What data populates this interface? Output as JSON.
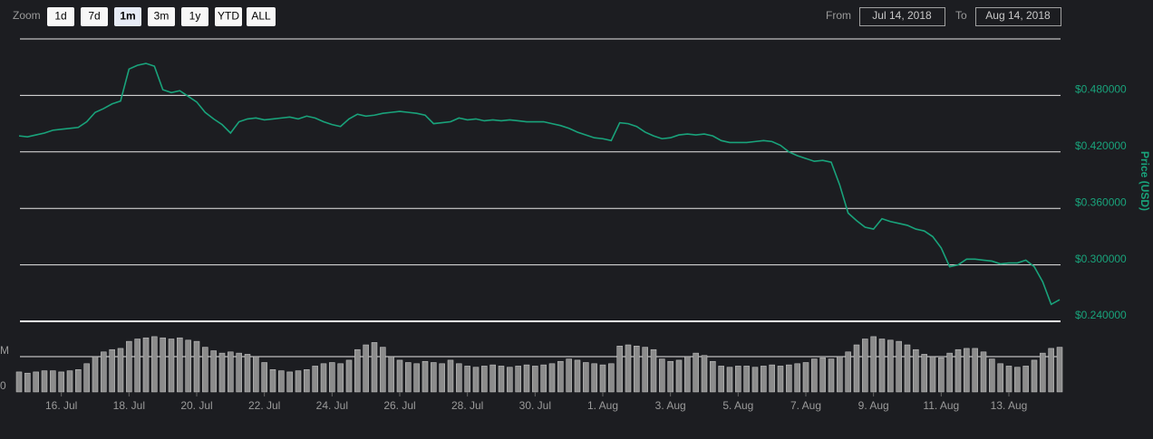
{
  "zoom_label": "Zoom",
  "zoom_buttons": [
    "1d",
    "7d",
    "1m",
    "3m",
    "1y",
    "YTD",
    "ALL"
  ],
  "from_label": "From",
  "from_value": "Jul 14, 2018",
  "to_label": "To",
  "to_value": "Aug 14, 2018",
  "chart_data": [
    {
      "type": "line",
      "color": "#19a37b",
      "y_label": "Price (USD)",
      "grid": true,
      "xlim": [
        "2018-07-14T18:00",
        "2018-08-14T12:00"
      ],
      "ylim": [
        0.24,
        0.54
      ],
      "yticks": [
        {
          "value": 0.24,
          "label": "$0.240000"
        },
        {
          "value": 0.3,
          "label": "$0.300000"
        },
        {
          "value": 0.36,
          "label": "$0.360000"
        },
        {
          "value": 0.42,
          "label": "$0.420000"
        },
        {
          "value": 0.48,
          "label": "$0.480000"
        }
      ],
      "x": [
        "2018-07-14T18:00",
        "2018-07-15T00:00",
        "2018-07-15T06:00",
        "2018-07-15T12:00",
        "2018-07-15T18:00",
        "2018-07-16T00:00",
        "2018-07-16T06:00",
        "2018-07-16T12:00",
        "2018-07-16T18:00",
        "2018-07-17T00:00",
        "2018-07-17T06:00",
        "2018-07-17T12:00",
        "2018-07-17T18:00",
        "2018-07-18T00:00",
        "2018-07-18T06:00",
        "2018-07-18T12:00",
        "2018-07-18T18:00",
        "2018-07-19T00:00",
        "2018-07-19T06:00",
        "2018-07-19T12:00",
        "2018-07-19T18:00",
        "2018-07-20T00:00",
        "2018-07-20T06:00",
        "2018-07-20T12:00",
        "2018-07-20T18:00",
        "2018-07-21T00:00",
        "2018-07-21T06:00",
        "2018-07-21T12:00",
        "2018-07-21T18:00",
        "2018-07-22T00:00",
        "2018-07-22T06:00",
        "2018-07-22T12:00",
        "2018-07-22T18:00",
        "2018-07-23T00:00",
        "2018-07-23T06:00",
        "2018-07-23T12:00",
        "2018-07-23T18:00",
        "2018-07-24T00:00",
        "2018-07-24T06:00",
        "2018-07-24T12:00",
        "2018-07-24T18:00",
        "2018-07-25T00:00",
        "2018-07-25T06:00",
        "2018-07-25T12:00",
        "2018-07-25T18:00",
        "2018-07-26T00:00",
        "2018-07-26T06:00",
        "2018-07-26T12:00",
        "2018-07-26T18:00",
        "2018-07-27T00:00",
        "2018-07-27T06:00",
        "2018-07-27T12:00",
        "2018-07-27T18:00",
        "2018-07-28T00:00",
        "2018-07-28T06:00",
        "2018-07-28T12:00",
        "2018-07-28T18:00",
        "2018-07-29T00:00",
        "2018-07-29T06:00",
        "2018-07-29T12:00",
        "2018-07-29T18:00",
        "2018-07-30T00:00",
        "2018-07-30T06:00",
        "2018-07-30T12:00",
        "2018-07-30T18:00",
        "2018-07-31T00:00",
        "2018-07-31T06:00",
        "2018-07-31T12:00",
        "2018-07-31T18:00",
        "2018-08-01T00:00",
        "2018-08-01T06:00",
        "2018-08-01T12:00",
        "2018-08-01T18:00",
        "2018-08-02T00:00",
        "2018-08-02T06:00",
        "2018-08-02T12:00",
        "2018-08-02T18:00",
        "2018-08-03T00:00",
        "2018-08-03T06:00",
        "2018-08-03T12:00",
        "2018-08-03T18:00",
        "2018-08-04T00:00",
        "2018-08-04T06:00",
        "2018-08-04T12:00",
        "2018-08-04T18:00",
        "2018-08-05T00:00",
        "2018-08-05T06:00",
        "2018-08-05T12:00",
        "2018-08-05T18:00",
        "2018-08-06T00:00",
        "2018-08-06T06:00",
        "2018-08-06T12:00",
        "2018-08-06T18:00",
        "2018-08-07T00:00",
        "2018-08-07T06:00",
        "2018-08-07T12:00",
        "2018-08-07T18:00",
        "2018-08-08T00:00",
        "2018-08-08T06:00",
        "2018-08-08T12:00",
        "2018-08-08T18:00",
        "2018-08-09T00:00",
        "2018-08-09T06:00",
        "2018-08-09T12:00",
        "2018-08-09T18:00",
        "2018-08-10T00:00",
        "2018-08-10T06:00",
        "2018-08-10T12:00",
        "2018-08-10T18:00",
        "2018-08-11T00:00",
        "2018-08-11T06:00",
        "2018-08-11T12:00",
        "2018-08-11T18:00",
        "2018-08-12T00:00",
        "2018-08-12T06:00",
        "2018-08-12T12:00",
        "2018-08-12T18:00",
        "2018-08-13T00:00",
        "2018-08-13T06:00",
        "2018-08-13T12:00",
        "2018-08-13T18:00",
        "2018-08-14T00:00",
        "2018-08-14T06:00",
        "2018-08-14T12:00"
      ],
      "values": [
        0.437,
        0.436,
        0.438,
        0.44,
        0.443,
        0.444,
        0.445,
        0.446,
        0.452,
        0.462,
        0.466,
        0.471,
        0.474,
        0.508,
        0.512,
        0.514,
        0.511,
        0.486,
        0.483,
        0.485,
        0.479,
        0.473,
        0.462,
        0.455,
        0.449,
        0.44,
        0.452,
        0.455,
        0.456,
        0.454,
        0.455,
        0.456,
        0.457,
        0.455,
        0.458,
        0.456,
        0.452,
        0.449,
        0.447,
        0.455,
        0.46,
        0.458,
        0.459,
        0.461,
        0.462,
        0.463,
        0.462,
        0.461,
        0.459,
        0.45,
        0.451,
        0.452,
        0.456,
        0.454,
        0.455,
        0.453,
        0.454,
        0.453,
        0.454,
        0.453,
        0.452,
        0.452,
        0.452,
        0.45,
        0.448,
        0.445,
        0.441,
        0.438,
        0.435,
        0.434,
        0.432,
        0.451,
        0.45,
        0.447,
        0.441,
        0.437,
        0.434,
        0.435,
        0.438,
        0.439,
        0.438,
        0.439,
        0.437,
        0.432,
        0.43,
        0.43,
        0.43,
        0.431,
        0.432,
        0.431,
        0.427,
        0.42,
        0.416,
        0.413,
        0.41,
        0.411,
        0.409,
        0.385,
        0.355,
        0.347,
        0.34,
        0.338,
        0.349,
        0.346,
        0.344,
        0.342,
        0.338,
        0.336,
        0.33,
        0.318,
        0.298,
        0.3,
        0.306,
        0.306,
        0.305,
        0.304,
        0.301,
        0.302,
        0.302,
        0.305,
        0.298,
        0.282,
        0.258,
        0.263
      ]
    },
    {
      "type": "bar",
      "color": "#8c8c8c",
      "grid": true,
      "xlim": [
        "2018-07-14T18:00",
        "2018-08-14T12:00"
      ],
      "ylim": [
        0,
        60
      ],
      "yticks": [
        0,
        {
          "value": 30,
          "label": "M"
        }
      ],
      "xticks": [
        {
          "value": "2018-07-16T00:00",
          "label": "16. Jul"
        },
        {
          "value": "2018-07-18T00:00",
          "label": "18. Jul"
        },
        {
          "value": "2018-07-20T00:00",
          "label": "20. Jul"
        },
        {
          "value": "2018-07-22T00:00",
          "label": "22. Jul"
        },
        {
          "value": "2018-07-24T00:00",
          "label": "24. Jul"
        },
        {
          "value": "2018-07-26T00:00",
          "label": "26. Jul"
        },
        {
          "value": "2018-07-28T00:00",
          "label": "28. Jul"
        },
        {
          "value": "2018-07-30T00:00",
          "label": "30. Jul"
        },
        {
          "value": "2018-08-01T00:00",
          "label": "1. Aug"
        },
        {
          "value": "2018-08-03T00:00",
          "label": "3. Aug"
        },
        {
          "value": "2018-08-05T00:00",
          "label": "5. Aug"
        },
        {
          "value": "2018-08-07T00:00",
          "label": "7. Aug"
        },
        {
          "value": "2018-08-09T00:00",
          "label": "9. Aug"
        },
        {
          "value": "2018-08-11T00:00",
          "label": "11. Aug"
        },
        {
          "value": "2018-08-13T00:00",
          "label": "13. Aug"
        }
      ],
      "x": [
        "2018-07-14T18:00",
        "2018-07-15T00:00",
        "2018-07-15T06:00",
        "2018-07-15T12:00",
        "2018-07-15T18:00",
        "2018-07-16T00:00",
        "2018-07-16T06:00",
        "2018-07-16T12:00",
        "2018-07-16T18:00",
        "2018-07-17T00:00",
        "2018-07-17T06:00",
        "2018-07-17T12:00",
        "2018-07-17T18:00",
        "2018-07-18T00:00",
        "2018-07-18T06:00",
        "2018-07-18T12:00",
        "2018-07-18T18:00",
        "2018-07-19T00:00",
        "2018-07-19T06:00",
        "2018-07-19T12:00",
        "2018-07-19T18:00",
        "2018-07-20T00:00",
        "2018-07-20T06:00",
        "2018-07-20T12:00",
        "2018-07-20T18:00",
        "2018-07-21T00:00",
        "2018-07-21T06:00",
        "2018-07-21T12:00",
        "2018-07-21T18:00",
        "2018-07-22T00:00",
        "2018-07-22T06:00",
        "2018-07-22T12:00",
        "2018-07-22T18:00",
        "2018-07-23T00:00",
        "2018-07-23T06:00",
        "2018-07-23T12:00",
        "2018-07-23T18:00",
        "2018-07-24T00:00",
        "2018-07-24T06:00",
        "2018-07-24T12:00",
        "2018-07-24T18:00",
        "2018-07-25T00:00",
        "2018-07-25T06:00",
        "2018-07-25T12:00",
        "2018-07-25T18:00",
        "2018-07-26T00:00",
        "2018-07-26T06:00",
        "2018-07-26T12:00",
        "2018-07-26T18:00",
        "2018-07-27T00:00",
        "2018-07-27T06:00",
        "2018-07-27T12:00",
        "2018-07-27T18:00",
        "2018-07-28T00:00",
        "2018-07-28T06:00",
        "2018-07-28T12:00",
        "2018-07-28T18:00",
        "2018-07-29T00:00",
        "2018-07-29T06:00",
        "2018-07-29T12:00",
        "2018-07-29T18:00",
        "2018-07-30T00:00",
        "2018-07-30T06:00",
        "2018-07-30T12:00",
        "2018-07-30T18:00",
        "2018-07-31T00:00",
        "2018-07-31T06:00",
        "2018-07-31T12:00",
        "2018-07-31T18:00",
        "2018-08-01T00:00",
        "2018-08-01T06:00",
        "2018-08-01T12:00",
        "2018-08-01T18:00",
        "2018-08-02T00:00",
        "2018-08-02T06:00",
        "2018-08-02T12:00",
        "2018-08-02T18:00",
        "2018-08-03T00:00",
        "2018-08-03T06:00",
        "2018-08-03T12:00",
        "2018-08-03T18:00",
        "2018-08-04T00:00",
        "2018-08-04T06:00",
        "2018-08-04T12:00",
        "2018-08-04T18:00",
        "2018-08-05T00:00",
        "2018-08-05T06:00",
        "2018-08-05T12:00",
        "2018-08-05T18:00",
        "2018-08-06T00:00",
        "2018-08-06T06:00",
        "2018-08-06T12:00",
        "2018-08-06T18:00",
        "2018-08-07T00:00",
        "2018-08-07T06:00",
        "2018-08-07T12:00",
        "2018-08-07T18:00",
        "2018-08-08T00:00",
        "2018-08-08T06:00",
        "2018-08-08T12:00",
        "2018-08-08T18:00",
        "2018-08-09T00:00",
        "2018-08-09T06:00",
        "2018-08-09T12:00",
        "2018-08-09T18:00",
        "2018-08-10T00:00",
        "2018-08-10T06:00",
        "2018-08-10T12:00",
        "2018-08-10T18:00",
        "2018-08-11T00:00",
        "2018-08-11T06:00",
        "2018-08-11T12:00",
        "2018-08-11T18:00",
        "2018-08-12T00:00",
        "2018-08-12T06:00",
        "2018-08-12T12:00",
        "2018-08-12T18:00",
        "2018-08-13T00:00",
        "2018-08-13T06:00",
        "2018-08-13T12:00",
        "2018-08-13T18:00",
        "2018-08-14T00:00",
        "2018-08-14T06:00",
        "2018-08-14T12:00"
      ],
      "values": [
        17,
        16,
        17,
        18,
        18,
        17,
        18,
        19,
        24,
        30,
        34,
        36,
        37,
        43,
        45,
        46,
        47,
        46,
        45,
        46,
        44,
        43,
        38,
        35,
        33,
        34,
        33,
        32,
        30,
        25,
        19,
        18,
        17,
        18,
        19,
        22,
        24,
        25,
        24,
        27,
        36,
        40,
        42,
        38,
        30,
        27,
        25,
        24,
        26,
        25,
        24,
        27,
        24,
        22,
        21,
        22,
        23,
        22,
        21,
        22,
        23,
        22,
        23,
        24,
        26,
        28,
        27,
        25,
        24,
        23,
        24,
        39,
        40,
        39,
        38,
        36,
        28,
        26,
        27,
        30,
        33,
        31,
        26,
        22,
        21,
        22,
        22,
        21,
        22,
        23,
        22,
        23,
        24,
        25,
        28,
        29,
        28,
        30,
        34,
        40,
        45,
        47,
        45,
        44,
        43,
        40,
        36,
        32,
        30,
        29,
        33,
        36,
        37,
        37,
        34,
        28,
        24,
        22,
        21,
        22,
        27,
        33,
        37,
        38
      ]
    }
  ]
}
